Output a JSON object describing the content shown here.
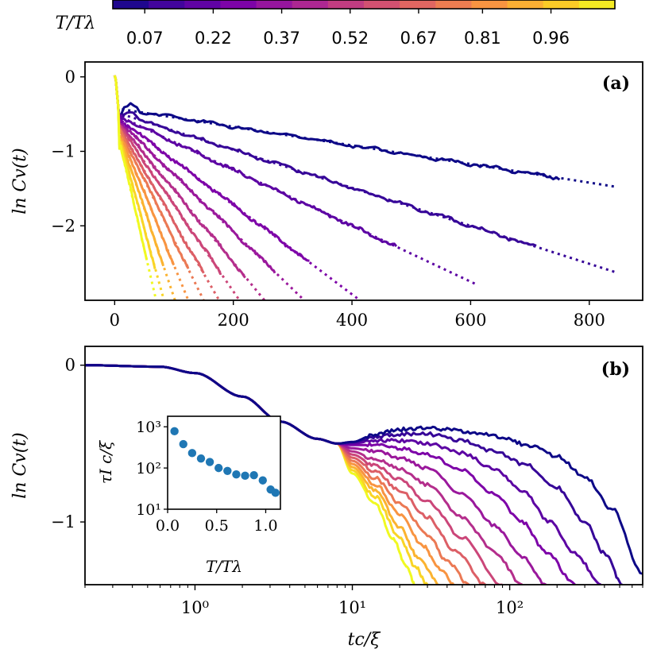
{
  "colorbar": {
    "label": "T/Tλ",
    "ticks": [
      "0.07",
      "0.22",
      "0.37",
      "0.52",
      "0.67",
      "0.81",
      "0.96"
    ],
    "tick_values": [
      0.07,
      0.22,
      0.37,
      0.52,
      0.67,
      0.81,
      0.96
    ],
    "range": [
      0.0,
      1.1
    ],
    "colormap": "plasma"
  },
  "chart_data": [
    {
      "type": "line",
      "panel": "(a)",
      "panel_label": "(a)",
      "xlabel": "",
      "ylabel": "ln Cv(t)",
      "xlim": [
        -50,
        890
      ],
      "ylim": [
        -3.0,
        0.2
      ],
      "xticks": [
        0,
        200,
        400,
        600,
        800
      ],
      "yticks": [
        0,
        -1,
        -2
      ],
      "xtick_labels": [
        "0",
        "200",
        "400",
        "600",
        "800"
      ],
      "ytick_labels": [
        "0",
        "−1",
        "−2"
      ],
      "series_style": "solid simulation line with dotted linear fit",
      "series": [
        {
          "name": "T/Tλ=0.07",
          "t_end": 750,
          "intercept": -0.42,
          "slope": -0.00125,
          "fit_end": 845
        },
        {
          "name": "T/Tλ=0.16",
          "t_end": 715,
          "intercept": -0.47,
          "slope": -0.00255,
          "fit_end": 845
        },
        {
          "name": "T/Tλ=0.25",
          "t_end": 475,
          "intercept": -0.5,
          "slope": -0.00375,
          "fit_end": 610
        },
        {
          "name": "T/Tλ=0.34",
          "t_end": 330,
          "intercept": -0.52,
          "slope": -0.006,
          "fit_end": 420
        },
        {
          "name": "T/Tλ=0.43",
          "t_end": 270,
          "intercept": -0.54,
          "slope": -0.0077,
          "fit_end": 350
        },
        {
          "name": "T/Tλ=0.52",
          "t_end": 220,
          "intercept": -0.55,
          "slope": -0.0097,
          "fit_end": 258
        },
        {
          "name": "T/Tλ=0.61",
          "t_end": 180,
          "intercept": -0.56,
          "slope": -0.0116,
          "fit_end": 210
        },
        {
          "name": "T/Tλ=0.70",
          "t_end": 150,
          "intercept": -0.57,
          "slope": -0.0138,
          "fit_end": 175
        },
        {
          "name": "T/Tλ=0.79",
          "t_end": 125,
          "intercept": -0.57,
          "slope": -0.0162,
          "fit_end": 150
        },
        {
          "name": "T/Tλ=0.88",
          "t_end": 100,
          "intercept": -0.58,
          "slope": -0.0195,
          "fit_end": 125
        },
        {
          "name": "T/Tλ=0.97",
          "t_end": 82,
          "intercept": -0.58,
          "slope": -0.0238,
          "fit_end": 103
        },
        {
          "name": "T/Tλ=1.05",
          "t_end": 68,
          "intercept": -0.59,
          "slope": -0.029,
          "fit_end": 85
        },
        {
          "name": "T/Tλ=1.10",
          "t_end": 55,
          "intercept": -0.59,
          "slope": -0.0345,
          "fit_end": 70
        }
      ]
    },
    {
      "type": "line",
      "panel": "(b)",
      "panel_label": "(b)",
      "xscale": "log",
      "xlabel": "tc/ξ",
      "ylabel": "ln Cv(t)",
      "xlim": [
        0.2,
        700
      ],
      "ylim": [
        -1.4,
        0.12
      ],
      "xticks": [
        1,
        10,
        100
      ],
      "xtick_labels": [
        "10⁰",
        "10¹",
        "10²"
      ],
      "yticks": [
        0,
        -1
      ],
      "ytick_labels": [
        "0",
        "−1"
      ],
      "common_curve": {
        "t": [
          0.2,
          0.6,
          1,
          2,
          3.5,
          6,
          8
        ],
        "y": [
          0.0,
          -0.01,
          -0.05,
          -0.2,
          -0.36,
          -0.47,
          -0.5
        ]
      },
      "series": [
        {
          "name": "T/Tλ=0.07",
          "t_end": 700,
          "t": [
            8,
            10,
            14,
            20,
            28,
            40,
            60,
            90,
            130,
            200,
            300,
            450,
            700
          ],
          "y": [
            -0.5,
            -0.49,
            -0.44,
            -0.41,
            -0.4,
            -0.41,
            -0.43,
            -0.46,
            -0.51,
            -0.58,
            -0.71,
            -0.92,
            -1.33
          ]
        },
        {
          "name": "T/Tλ=0.16",
          "t_end": 520,
          "t": [
            8,
            10,
            14,
            20,
            30,
            50,
            80,
            130,
            200,
            300,
            400,
            520
          ],
          "y": [
            -0.5,
            -0.49,
            -0.46,
            -0.44,
            -0.44,
            -0.48,
            -0.55,
            -0.64,
            -0.78,
            -1.0,
            -1.2,
            -1.4
          ]
        },
        {
          "name": "T/Tλ=0.25",
          "t_end": 380,
          "t": [
            8,
            10,
            14,
            20,
            30,
            50,
            80,
            120,
            180,
            260,
            380
          ],
          "y": [
            -0.5,
            -0.5,
            -0.48,
            -0.48,
            -0.5,
            -0.56,
            -0.66,
            -0.8,
            -1.0,
            -1.2,
            -1.4
          ]
        },
        {
          "name": "T/Tλ=0.34",
          "t_end": 260,
          "t": [
            8,
            10,
            14,
            20,
            30,
            50,
            80,
            120,
            170,
            260
          ],
          "y": [
            -0.5,
            -0.51,
            -0.51,
            -0.53,
            -0.57,
            -0.67,
            -0.82,
            -1.0,
            -1.19,
            -1.4
          ]
        },
        {
          "name": "T/Tλ=0.43",
          "t_end": 170,
          "t": [
            8,
            10,
            14,
            20,
            30,
            50,
            80,
            120,
            170
          ],
          "y": [
            -0.51,
            -0.53,
            -0.55,
            -0.59,
            -0.66,
            -0.82,
            -1.02,
            -1.22,
            -1.4
          ]
        },
        {
          "name": "T/Tλ=0.52",
          "t_end": 120,
          "t": [
            8,
            10,
            14,
            20,
            30,
            50,
            80,
            120
          ],
          "y": [
            -0.52,
            -0.55,
            -0.6,
            -0.66,
            -0.76,
            -0.97,
            -1.19,
            -1.4
          ]
        },
        {
          "name": "T/Tλ=0.61",
          "t_end": 90,
          "t": [
            8,
            10,
            14,
            20,
            30,
            50,
            90
          ],
          "y": [
            -0.53,
            -0.57,
            -0.64,
            -0.73,
            -0.87,
            -1.1,
            -1.4
          ]
        },
        {
          "name": "T/Tλ=0.70",
          "t_end": 70,
          "t": [
            8,
            10,
            14,
            20,
            30,
            45,
            70
          ],
          "y": [
            -0.54,
            -0.59,
            -0.68,
            -0.8,
            -0.97,
            -1.18,
            -1.4
          ]
        },
        {
          "name": "T/Tλ=0.79",
          "t_end": 55,
          "t": [
            8,
            10,
            14,
            20,
            30,
            40,
            55
          ],
          "y": [
            -0.55,
            -0.61,
            -0.72,
            -0.88,
            -1.08,
            -1.25,
            -1.4
          ]
        },
        {
          "name": "T/Tλ=0.88",
          "t_end": 45,
          "t": [
            8,
            10,
            14,
            20,
            28,
            36,
            45
          ],
          "y": [
            -0.56,
            -0.63,
            -0.76,
            -0.95,
            -1.15,
            -1.3,
            -1.4
          ]
        },
        {
          "name": "T/Tλ=0.97",
          "t_end": 36,
          "t": [
            8,
            10,
            14,
            20,
            26,
            36
          ],
          "y": [
            -0.57,
            -0.65,
            -0.8,
            -1.03,
            -1.22,
            -1.4
          ]
        },
        {
          "name": "T/Tλ=1.05",
          "t_end": 30,
          "t": [
            8,
            10,
            14,
            20,
            25,
            30
          ],
          "y": [
            -0.58,
            -0.67,
            -0.84,
            -1.1,
            -1.28,
            -1.4
          ]
        },
        {
          "name": "T/Tλ=1.10",
          "t_end": 25,
          "t": [
            8,
            10,
            14,
            18,
            22,
            25
          ],
          "y": [
            -0.59,
            -0.69,
            -0.88,
            -1.1,
            -1.28,
            -1.4
          ]
        }
      ]
    },
    {
      "type": "scatter",
      "panel": "inset",
      "xlabel": "T/Tλ",
      "ylabel": "τI c/ξ",
      "yscale": "log",
      "xlim": [
        0.0,
        1.15
      ],
      "ylim": [
        10,
        1800
      ],
      "xticks": [
        0.0,
        0.5,
        1.0
      ],
      "xtick_labels": [
        "0.0",
        "0.5",
        "1.0"
      ],
      "ytick_labels": [
        "10³",
        "10²",
        "10¹"
      ],
      "ytick_values": [
        1000,
        100,
        10
      ],
      "color": "#1f77b4",
      "x": [
        0.07,
        0.16,
        0.25,
        0.34,
        0.43,
        0.52,
        0.61,
        0.7,
        0.79,
        0.88,
        0.97,
        1.05,
        1.1
      ],
      "y": [
        780,
        380,
        230,
        170,
        140,
        100,
        85,
        70,
        65,
        67,
        50,
        30,
        25
      ]
    }
  ]
}
